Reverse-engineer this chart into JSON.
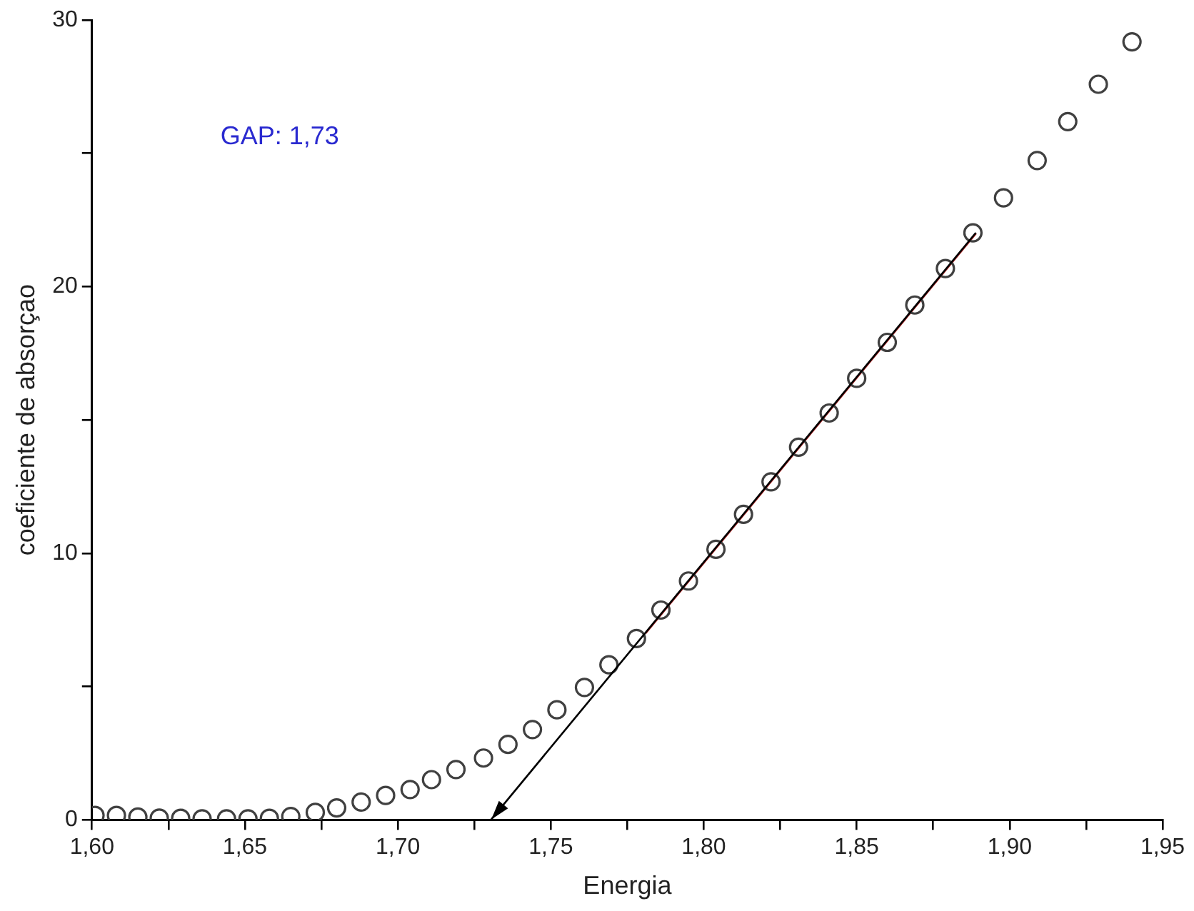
{
  "chart_data": {
    "type": "scatter",
    "xlabel": "Energia",
    "ylabel": "coeficiente de absorçao",
    "annotations": [
      "GAP: 1,73"
    ],
    "xlim": [
      1.6,
      1.95
    ],
    "ylim": [
      0,
      30
    ],
    "xticks": [
      {
        "value": 1.6,
        "label": "1,60"
      },
      {
        "value": 1.625,
        "label": null
      },
      {
        "value": 1.65,
        "label": "1,65"
      },
      {
        "value": 1.675,
        "label": null
      },
      {
        "value": 1.7,
        "label": "1,70"
      },
      {
        "value": 1.725,
        "label": null
      },
      {
        "value": 1.75,
        "label": "1,75"
      },
      {
        "value": 1.775,
        "label": null
      },
      {
        "value": 1.8,
        "label": "1,80"
      },
      {
        "value": 1.825,
        "label": null
      },
      {
        "value": 1.85,
        "label": "1,85"
      },
      {
        "value": 1.875,
        "label": null
      },
      {
        "value": 1.9,
        "label": "1,90"
      },
      {
        "value": 1.925,
        "label": null
      },
      {
        "value": 1.95,
        "label": "1,95"
      }
    ],
    "yticks": [
      0,
      {
        "value": 5,
        "label": null
      },
      10,
      {
        "value": 15,
        "label": null
      },
      20,
      {
        "value": 25,
        "label": null
      },
      30
    ],
    "grid": false,
    "legend": false,
    "series": [
      {
        "marker": "circle",
        "color": "#404040",
        "x": [
          1.601,
          1.608,
          1.615,
          1.622,
          1.629,
          1.636,
          1.644,
          1.651,
          1.658,
          1.665,
          1.673,
          1.68,
          1.688,
          1.696,
          1.704,
          1.711,
          1.719,
          1.728,
          1.736,
          1.744,
          1.752,
          1.761,
          1.769,
          1.778,
          1.786,
          1.795,
          1.804,
          1.813,
          1.822,
          1.831,
          1.841,
          1.85,
          1.86,
          1.869,
          1.879,
          1.888,
          1.898,
          1.909,
          1.919,
          1.929,
          1.94
        ],
        "values": [
          0.17,
          0.17,
          0.11,
          0.07,
          0.06,
          0.04,
          0.04,
          0.04,
          0.06,
          0.13,
          0.28,
          0.45,
          0.67,
          0.92,
          1.14,
          1.51,
          1.89,
          2.32,
          2.83,
          3.39,
          4.13,
          4.97,
          5.82,
          6.8,
          7.87,
          8.96,
          10.15,
          11.46,
          12.68,
          13.98,
          15.26,
          16.56,
          17.91,
          19.31,
          20.68,
          22.02,
          23.33,
          24.73,
          26.19,
          27.59,
          29.18
        ]
      },
      {
        "type": "line",
        "color": "#b22222",
        "x": [
          1.781,
          1.889
        ],
        "values": [
          7.0,
          22.0
        ]
      }
    ]
  }
}
